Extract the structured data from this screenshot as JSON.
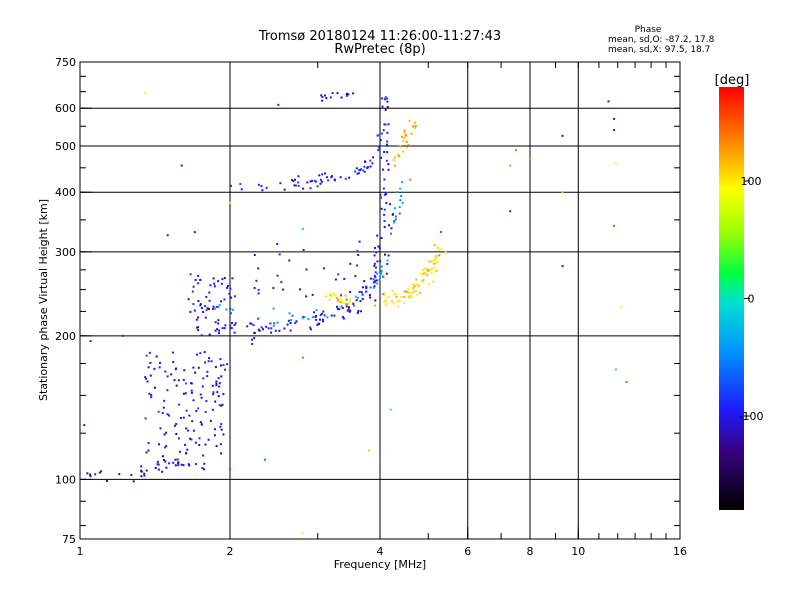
{
  "chart_data": {
    "type": "scatter",
    "title": "Tromsø 20180124 11:26:00-11:27:43",
    "subtitle": "RwPretec (8p)",
    "xlabel": "Frequency [MHz]",
    "ylabel": "Stationary phase Virtual Height [km]",
    "x_scale": "log",
    "y_scale": "log",
    "xlim": [
      1,
      16
    ],
    "ylim": [
      75,
      750
    ],
    "x_ticks": [
      1,
      2,
      4,
      6,
      8,
      10,
      16
    ],
    "y_ticks": [
      75,
      100,
      200,
      300,
      400,
      500,
      600,
      750
    ],
    "x_gridlines": [
      2,
      4,
      6,
      8,
      10
    ],
    "y_gridlines": [
      100,
      200,
      300,
      400,
      500,
      600
    ],
    "phase_info": {
      "heading": "Phase",
      "o_line": "mean, sd,O: -87.2, 17.8",
      "x_line": "mean, sd,X:  97.5, 18.7"
    },
    "colorbar": {
      "label": "[deg]",
      "range": [
        -180,
        180
      ],
      "ticks": [
        {
          "value": 100,
          "label": "100"
        },
        {
          "value": 0,
          "label": "0"
        },
        {
          "value": -100,
          "label": "-100"
        }
      ]
    },
    "traces": [
      {
        "kind": "curve",
        "phase": -110,
        "count": 40,
        "spread": 0.018,
        "points": [
          [
            1.0,
            103
          ],
          [
            1.15,
            102
          ],
          [
            1.3,
            102
          ],
          [
            1.45,
            106
          ],
          [
            1.6,
            110
          ],
          [
            1.75,
            130
          ],
          [
            1.85,
            150
          ],
          [
            1.95,
            175
          ]
        ]
      },
      {
        "kind": "cloud",
        "phase": -105,
        "count": 140,
        "xr": [
          1.35,
          1.95
        ],
        "yr": [
          105,
          185
        ]
      },
      {
        "kind": "curve",
        "phase": -110,
        "count": 45,
        "spread": 0.025,
        "points": [
          [
            1.75,
            230
          ],
          [
            1.85,
            215
          ],
          [
            2.0,
            205
          ],
          [
            2.2,
            203
          ],
          [
            2.5,
            205
          ],
          [
            3.0,
            212
          ],
          [
            3.5,
            222
          ],
          [
            3.9,
            240
          ],
          [
            4.1,
            270
          ],
          [
            4.2,
            320
          ],
          [
            4.25,
            380
          ]
        ]
      },
      {
        "kind": "curve",
        "phase": -40,
        "count": 50,
        "spread": 0.02,
        "points": [
          [
            1.85,
            225
          ],
          [
            2.2,
            218
          ],
          [
            2.6,
            218
          ],
          [
            3.0,
            222
          ],
          [
            3.5,
            235
          ],
          [
            3.9,
            255
          ],
          [
            4.2,
            300
          ],
          [
            4.35,
            360
          ],
          [
            4.45,
            420
          ]
        ]
      },
      {
        "kind": "curve",
        "phase": -100,
        "count": 110,
        "spread": 0.018,
        "points": [
          [
            2.0,
            212
          ],
          [
            2.5,
            210
          ],
          [
            3.0,
            215
          ],
          [
            3.5,
            230
          ],
          [
            3.9,
            260
          ],
          [
            4.05,
            330
          ],
          [
            4.1,
            450
          ],
          [
            4.1,
            650
          ]
        ]
      },
      {
        "kind": "cloud",
        "phase": -100,
        "count": 60,
        "xr": [
          1.65,
          2.05
        ],
        "yr": [
          200,
          270
        ]
      },
      {
        "kind": "curve",
        "phase": -95,
        "count": 70,
        "spread": 0.015,
        "points": [
          [
            2.0,
            415
          ],
          [
            2.4,
            413
          ],
          [
            2.8,
            418
          ],
          [
            3.2,
            425
          ],
          [
            3.6,
            440
          ],
          [
            3.9,
            470
          ],
          [
            4.05,
            540
          ],
          [
            4.1,
            640
          ]
        ]
      },
      {
        "kind": "curve",
        "phase": 110,
        "count": 80,
        "spread": 0.02,
        "points": [
          [
            4.0,
            235
          ],
          [
            4.4,
            240
          ],
          [
            4.8,
            255
          ],
          [
            5.1,
            280
          ],
          [
            5.3,
            310
          ]
        ]
      },
      {
        "kind": "curve",
        "phase": 105,
        "count": 25,
        "spread": 0.02,
        "points": [
          [
            3.1,
            245
          ],
          [
            3.3,
            240
          ],
          [
            3.5,
            235
          ]
        ]
      },
      {
        "kind": "curve",
        "phase": 120,
        "count": 25,
        "spread": 0.02,
        "points": [
          [
            4.3,
            470
          ],
          [
            4.5,
            520
          ],
          [
            4.7,
            560
          ]
        ]
      },
      {
        "kind": "curve",
        "phase": -110,
        "count": 14,
        "spread": 0.008,
        "points": [
          [
            3.0,
            630
          ],
          [
            3.3,
            640
          ],
          [
            3.6,
            650
          ]
        ]
      },
      {
        "kind": "cloud",
        "phase": -100,
        "count": 30,
        "xr": [
          2.2,
          3.7
        ],
        "yr": [
          240,
          320
        ]
      }
    ],
    "outliers": [
      {
        "x": 1.35,
        "y": 645,
        "phase": 100
      },
      {
        "x": 2.5,
        "y": 610,
        "phase": -100
      },
      {
        "x": 4.6,
        "y": 425,
        "phase": 140
      },
      {
        "x": 7.3,
        "y": 455,
        "phase": 130
      },
      {
        "x": 7.5,
        "y": 490,
        "phase": 140
      },
      {
        "x": 8.0,
        "y": 470,
        "phase": 20
      },
      {
        "x": 7.3,
        "y": 365,
        "phase": -100
      },
      {
        "x": 9.3,
        "y": 525,
        "phase": -110
      },
      {
        "x": 9.3,
        "y": 400,
        "phase": 60
      },
      {
        "x": 9.3,
        "y": 280,
        "phase": -110
      },
      {
        "x": 11.5,
        "y": 620,
        "phase": -100
      },
      {
        "x": 11.8,
        "y": 570,
        "phase": -110
      },
      {
        "x": 11.8,
        "y": 540,
        "phase": -120
      },
      {
        "x": 11.9,
        "y": 460,
        "phase": 100
      },
      {
        "x": 11.8,
        "y": 340,
        "phase": 160
      },
      {
        "x": 12.2,
        "y": 230,
        "phase": 90
      },
      {
        "x": 11.9,
        "y": 170,
        "phase": 0
      },
      {
        "x": 12.5,
        "y": 160,
        "phase": 150
      },
      {
        "x": 2.35,
        "y": 110,
        "phase": -60
      },
      {
        "x": 2.0,
        "y": 105,
        "phase": 170
      },
      {
        "x": 2.8,
        "y": 77,
        "phase": 100
      },
      {
        "x": 3.8,
        "y": 115,
        "phase": 110
      },
      {
        "x": 2.8,
        "y": 180,
        "phase": 150
      },
      {
        "x": 4.2,
        "y": 140,
        "phase": 10
      },
      {
        "x": 1.05,
        "y": 195,
        "phase": -100
      },
      {
        "x": 1.02,
        "y": 130,
        "phase": -100
      },
      {
        "x": 1.22,
        "y": 200,
        "phase": -90
      },
      {
        "x": 1.6,
        "y": 455,
        "phase": -100
      },
      {
        "x": 1.7,
        "y": 330,
        "phase": -100
      },
      {
        "x": 1.5,
        "y": 325,
        "phase": -110
      },
      {
        "x": 2.8,
        "y": 335,
        "phase": 0
      },
      {
        "x": 2.0,
        "y": 380,
        "phase": 100
      },
      {
        "x": 5.3,
        "y": 330,
        "phase": 170
      }
    ]
  }
}
